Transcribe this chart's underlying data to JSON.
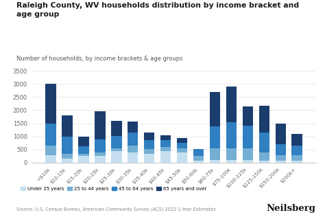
{
  "title": "Raleigh County, WV households distribution by income bracket and\nage group",
  "subtitle": "Number of households, by income brackets & age groups",
  "source": "Source: U.S. Census Bureau, American Community Survey (ACS) 2022 1-Year Estimates",
  "categories": [
    "<$10k",
    "$10-15k",
    "$15-20k",
    "$20-25k",
    "$25-30k",
    "$30-35k",
    "$35-40k",
    "$40-45k",
    "$45-50k",
    "$50-60k",
    "$60-75k",
    "$75-100k",
    "$100-125k",
    "$125-150k",
    "$150-200k",
    "$200k+"
  ],
  "under25": [
    300,
    150,
    250,
    270,
    450,
    400,
    350,
    440,
    390,
    90,
    100,
    100,
    100,
    70,
    80,
    90
  ],
  "age25_44": [
    350,
    200,
    100,
    130,
    110,
    260,
    180,
    170,
    170,
    180,
    460,
    450,
    460,
    330,
    220,
    200
  ],
  "age45_64": [
    850,
    650,
    290,
    500,
    460,
    500,
    320,
    240,
    190,
    250,
    830,
    1000,
    860,
    750,
    410,
    370
  ],
  "age65plus": [
    1500,
    800,
    360,
    1050,
    580,
    410,
    310,
    200,
    200,
    0,
    1310,
    1350,
    720,
    1010,
    790,
    440
  ],
  "colors": {
    "under25": "#c5dff0",
    "age25_44": "#74afd3",
    "age45_64": "#2f7fc1",
    "age65plus": "#1a3d6e"
  },
  "ylim": [
    0,
    3800
  ],
  "yticks": [
    0,
    500,
    1000,
    1500,
    2000,
    2500,
    3000,
    3500
  ],
  "background_color": "#ffffff",
  "legend_labels": [
    "Under 25 years",
    "25 to 44 years",
    "45 to 64 years",
    "65 years and over"
  ]
}
